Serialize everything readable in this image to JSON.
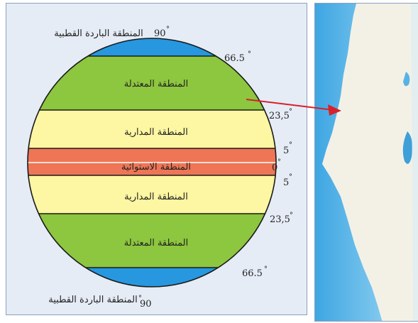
{
  "colors": {
    "polar": "#2797df",
    "temperate": "#8dc63f",
    "tropical": "#fdf6a2",
    "equatorial": "#ee7656",
    "outline": "#1a1a1a",
    "panel_bg": "#e5ecf5",
    "arrow": "#d8202a",
    "sea": "#57b3e6",
    "land": "#f3f1e6"
  },
  "zones": {
    "polar_north": "المنطقة الباردة القطبية",
    "temperate_north": "المنطقة المعتدلة",
    "tropical_north": "المنطقة المدارية",
    "equatorial": "المنطقة الاستوائية",
    "tropical_south": "المنطقة المدارية",
    "temperate_south": "المنطقة المعتدلة",
    "polar_south": "المنطقة الباردة القطبية"
  },
  "latitudes": {
    "north_pole": "90",
    "north_arctic": "66.5",
    "north_tropic": "23,5",
    "north_5": "5",
    "equator": "0",
    "south_5": "5",
    "south_tropic": "23,5",
    "south_arctic": "66.5",
    "south_pole": "90"
  },
  "degree_symbol": "°",
  "icons": [
    "pointer-arrow-icon"
  ]
}
